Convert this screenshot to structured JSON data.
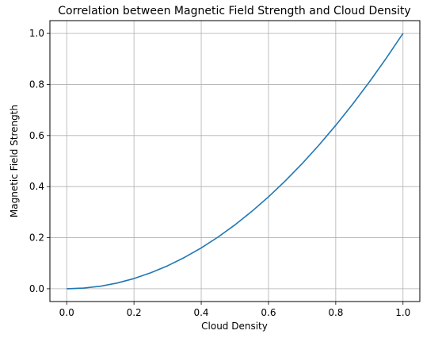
{
  "chart_data": {
    "type": "line",
    "title": "Correlation between Magnetic Field Strength and Cloud Density",
    "xlabel": "Cloud Density",
    "ylabel": "Magnetic Field Strength",
    "xlim": [
      -0.05,
      1.05
    ],
    "ylim": [
      -0.05,
      1.05
    ],
    "xticks": [
      0.0,
      0.2,
      0.4,
      0.6,
      0.8,
      1.0
    ],
    "xtick_labels": [
      "0.0",
      "0.2",
      "0.4",
      "0.6",
      "0.8",
      "1.0"
    ],
    "yticks": [
      0.0,
      0.2,
      0.4,
      0.6,
      0.8,
      1.0
    ],
    "ytick_labels": [
      "0.0",
      "0.2",
      "0.4",
      "0.6",
      "0.8",
      "1.0"
    ],
    "grid": true,
    "series": [
      {
        "color": "#1f77b4",
        "x": [
          0.0,
          0.05,
          0.1,
          0.15,
          0.2,
          0.25,
          0.3,
          0.35,
          0.4,
          0.45,
          0.5,
          0.55,
          0.6,
          0.65,
          0.7,
          0.75,
          0.8,
          0.85,
          0.9,
          0.95,
          1.0
        ],
        "y": [
          0.0,
          0.0025,
          0.01,
          0.0225,
          0.04,
          0.0625,
          0.09,
          0.1225,
          0.16,
          0.2025,
          0.25,
          0.3025,
          0.36,
          0.4225,
          0.49,
          0.5625,
          0.64,
          0.7225,
          0.81,
          0.9025,
          1.0
        ]
      }
    ]
  }
}
